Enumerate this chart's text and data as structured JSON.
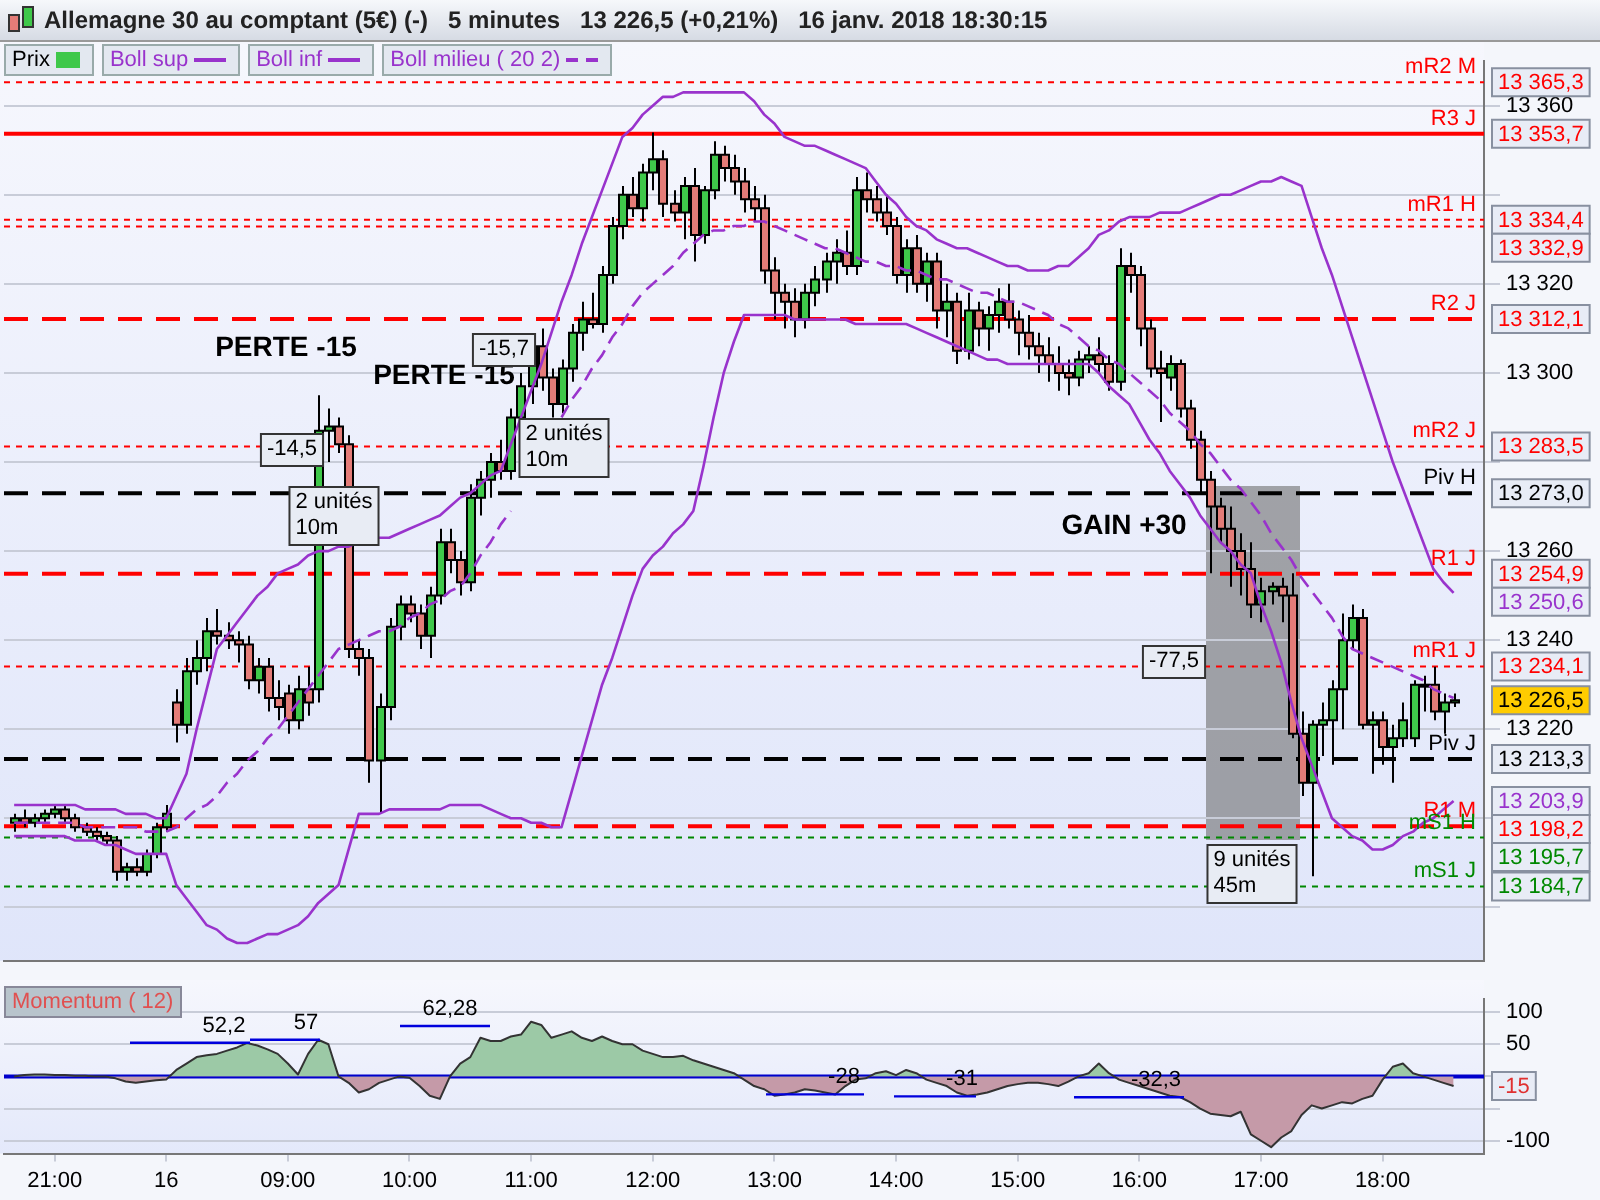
{
  "chart_data": [
    {
      "type": "candlestick",
      "title": "Allemagne 30 au comptant (5€) (-)   5 minutes   13 226,5 (+0,21%)   16 janv. 2018 18:30:15",
      "categories": [
        null,
        null,
        null,
        null,
        null,
        null,
        null,
        null,
        null,
        null,
        null,
        null,
        null,
        null,
        null,
        null,
        null,
        null,
        null,
        null,
        null,
        null,
        null,
        null,
        null,
        null,
        null,
        null,
        null,
        null,
        null,
        null,
        null,
        null,
        null,
        null,
        null,
        null,
        null,
        null,
        null,
        null,
        null,
        null,
        null,
        null,
        null,
        null,
        null,
        null,
        null,
        null,
        null,
        null,
        null,
        null,
        null,
        null,
        null,
        null,
        null,
        null,
        null,
        null,
        null,
        null,
        null,
        null,
        null,
        null,
        null,
        null,
        null,
        null,
        null,
        null,
        null,
        null,
        null,
        null,
        null,
        null,
        null,
        null,
        null,
        null,
        null,
        null,
        null,
        null,
        null,
        null,
        null,
        null,
        null,
        null,
        null,
        null,
        null,
        null,
        null,
        null,
        null,
        null,
        null,
        null,
        null,
        null,
        null,
        null,
        null,
        null,
        null,
        null,
        null,
        null,
        null,
        null,
        null,
        null,
        null,
        null,
        null,
        null,
        null,
        null,
        null,
        null,
        null,
        null,
        null,
        null,
        null,
        null,
        null,
        null,
        null,
        null,
        null,
        null,
        null,
        null,
        null
      ],
      "series": [
        {
          "name": "Prix",
          "type": "candlestick",
          "colors": [
            "#3fc84a",
            "#e47c78",
            "#3fc84a",
            "#3fc84a",
            "#3fc84a",
            "#e47c78",
            "#e47c78",
            "#e47c78",
            "#e47c78",
            "#e47c78",
            "#e47c78",
            "#3fc84a",
            "#e47c78",
            "#3fc84a",
            "#3fc84a",
            "#3fc84a",
            "#e47c78",
            "#3fc84a",
            "#3fc84a",
            "#3fc84a",
            "#e47c78",
            "#e47c78",
            "#e47c78",
            "#e47c78",
            "#3fc84a",
            "#e47c78",
            "#e47c78",
            "#e47c78",
            "#3fc84a",
            "#e47c78",
            "#3fc84a",
            "#3fc84a",
            "#e47c78",
            "#e47c78",
            "#e47c78",
            "#e47c78",
            "#3fc84a",
            "#3fc84a",
            "#3fc84a",
            "#e47c78",
            "#e47c78",
            "#3fc84a",
            "#3fc84a",
            "#e47c78",
            "#e47c78",
            "#3fc84a",
            "#3fc84a",
            "#3fc84a",
            "#e47c78",
            "#3fc84a",
            "#3fc84a",
            "#3fc84a",
            "#e47c78",
            "#e47c78",
            "#3fc84a",
            "#3fc84a",
            "#3fc84a",
            "#e47c78",
            "#3fc84a",
            "#3fc84a",
            "#3fc84a",
            "#e47c78",
            "#3fc84a",
            "#3fc84a",
            "#e47c78",
            "#e47c78",
            "#3fc84a",
            "#e47c78",
            "#3fc84a",
            "#3fc84a",
            "#e47c78",
            "#e47c78",
            "#e47c78",
            "#e47c78",
            "#e47c78",
            "#e47c78",
            "#e47c78",
            "#e47c78",
            "#3fc84a",
            "#3fc84a",
            "#3fc84a",
            "#3fc84a",
            "#e47c78",
            "#3fc84a",
            "#e47c78",
            "#e47c78",
            "#e47c78",
            "#e47c78",
            "#3fc84a",
            "#e47c78",
            "#3fc84a",
            "#e47c78",
            "#3fc84a",
            "#e47c78",
            "#3fc84a",
            "#e47c78",
            "#3fc84a",
            "#3fc84a",
            "#e47c78",
            "#e47c78",
            "#e47c78",
            "#e47c78",
            "#e47c78",
            "#e47c78",
            "#e47c78",
            "#3fc84a",
            "#3fc84a",
            "#e47c78",
            "#e47c78",
            "#3fc84a",
            "#e47c78",
            "#e47c78",
            "#e47c78",
            "#e47c78",
            "#3fc84a",
            "#e47c78",
            "#e47c78",
            "#e47c78",
            "#e47c78",
            "#e47c78",
            "#e47c78",
            "#e47c78",
            "#e47c78",
            "#3fc84a",
            "#3fc84a",
            "#e47c78",
            "#e47c78",
            "#e47c78",
            "#3fc84a",
            "#3fc84a",
            "#3fc84a",
            "#3fc84a",
            "#3fc84a",
            "#e47c78",
            "#3fc84a",
            "#e47c78",
            "#3fc84a",
            "#3fc84a",
            "#3fc84a",
            "#3fc84a",
            "#e47c78",
            "#3fc84a",
            "#3fc84a"
          ],
          "ohlc": [
            [
              13199,
              13201,
              13197,
              13200
            ],
            [
              13200,
              13202,
              13198,
              13199
            ],
            [
              13199,
              13201,
              13198,
              13200
            ],
            [
              13200,
              13202,
              13199,
              13201
            ],
            [
              13201,
              13203,
              13200,
              13202
            ],
            [
              13202,
              13203,
              13199,
              13200
            ],
            [
              13200,
              13201,
              13197,
              13198
            ],
            [
              13198,
              13199,
              13196,
              13197
            ],
            [
              13197,
              13198,
              13195,
              13196
            ],
            [
              13196,
              13197,
              13194,
              13195
            ],
            [
              13195,
              13196,
              13186,
              13188
            ],
            [
              13188,
              13190,
              13186,
              13189
            ],
            [
              13189,
              13191,
              13187,
              13188
            ],
            [
              13188,
              13193,
              13187,
              13192
            ],
            [
              13192,
              13199,
              13191,
              13198
            ],
            [
              13198,
              13203,
              13197,
              13201
            ],
            [
              13226,
              13229,
              13217,
              13221
            ],
            [
              13221,
              13236,
              13219,
              13233
            ],
            [
              13233,
              13240,
              13230,
              13236
            ],
            [
              13236,
              13245,
              13233,
              13242
            ],
            [
              13242,
              13247,
              13239,
              13241
            ],
            [
              13241,
              13244,
              13238,
              13240
            ],
            [
              13240,
              13242,
              13235,
              13239
            ],
            [
              13239,
              13241,
              13229,
              13231
            ],
            [
              13231,
              13236,
              13228,
              13234
            ],
            [
              13234,
              13236,
              13224,
              13227
            ],
            [
              13227,
              13231,
              13222,
              13225
            ],
            [
              13228,
              13230,
              13219,
              13222
            ],
            [
              13222,
              13232,
              13220,
              13229
            ],
            [
              13229,
              13234,
              13223,
              13226
            ],
            [
              13229,
              13295,
              13226,
              13287
            ],
            [
              13287,
              13292,
              13280,
              13288
            ],
            [
              13288,
              13290,
              13282,
              13284
            ],
            [
              13284,
              13286,
              13236,
              13238
            ],
            [
              13238,
              13240,
              13232,
              13236
            ],
            [
              13236,
              13238,
              13208,
              13213
            ],
            [
              13213,
              13228,
              13201,
              13225
            ],
            [
              13225,
              13245,
              13222,
              13243
            ],
            [
              13243,
              13250,
              13240,
              13248
            ],
            [
              13248,
              13250,
              13244,
              13246
            ],
            [
              13246,
              13248,
              13238,
              13241
            ],
            [
              13241,
              13252,
              13236,
              13250
            ],
            [
              13250,
              13265,
              13248,
              13262
            ],
            [
              13262,
              13265,
              13255,
              13258
            ],
            [
              13258,
              13260,
              13250,
              13253
            ],
            [
              13253,
              13275,
              13251,
              13272
            ],
            [
              13272,
              13278,
              13268,
              13276
            ],
            [
              13276,
              13282,
              13272,
              13280
            ],
            [
              13280,
              13285,
              13276,
              13278
            ],
            [
              13278,
              13292,
              13276,
              13290
            ],
            [
              13290,
              13300,
              13285,
              13297
            ],
            [
              13297,
              13308,
              13293,
              13306
            ],
            [
              13306,
              13310,
              13296,
              13299
            ],
            [
              13299,
              13301,
              13290,
              13293
            ],
            [
              13293,
              13303,
              13291,
              13301
            ],
            [
              13301,
              13311,
              13298,
              13309
            ],
            [
              13309,
              13316,
              13305,
              13312
            ],
            [
              13312,
              13318,
              13310,
              13311
            ],
            [
              13311,
              13324,
              13309,
              13322
            ],
            [
              13322,
              13335,
              13320,
              13333
            ],
            [
              13333,
              13342,
              13330,
              13340
            ],
            [
              13340,
              13344,
              13335,
              13337
            ],
            [
              13337,
              13347,
              13334,
              13345
            ],
            [
              13345,
              13354,
              13341,
              13348
            ],
            [
              13348,
              13350,
              13335,
              13338
            ],
            [
              13338,
              13341,
              13334,
              13336
            ],
            [
              13336,
              13344,
              13330,
              13342
            ],
            [
              13342,
              13346,
              13325,
              13331
            ],
            [
              13331,
              13342,
              13329,
              13341
            ],
            [
              13341,
              13352,
              13339,
              13349
            ],
            [
              13349,
              13351,
              13343,
              13346
            ],
            [
              13346,
              13349,
              13340,
              13343
            ],
            [
              13343,
              13346,
              13336,
              13339
            ],
            [
              13339,
              13342,
              13334,
              13337
            ],
            [
              13337,
              13340,
              13320,
              13323
            ],
            [
              13323,
              13326,
              13312,
              13318
            ],
            [
              13318,
              13320,
              13310,
              13316
            ],
            [
              13316,
              13319,
              13308,
              13312
            ],
            [
              13312,
              13320,
              13310,
              13318
            ],
            [
              13318,
              13324,
              13315,
              13321
            ],
            [
              13321,
              13327,
              13318,
              13325
            ],
            [
              13325,
              13330,
              13320,
              13327
            ],
            [
              13327,
              13332,
              13322,
              13324
            ],
            [
              13324,
              13344,
              13322,
              13341
            ],
            [
              13341,
              13345,
              13336,
              13339
            ],
            [
              13339,
              13342,
              13334,
              13336
            ],
            [
              13336,
              13340,
              13331,
              13333
            ],
            [
              13333,
              13335,
              13320,
              13322
            ],
            [
              13322,
              13330,
              13318,
              13328
            ],
            [
              13328,
              13331,
              13318,
              13320
            ],
            [
              13320,
              13327,
              13316,
              13325
            ],
            [
              13325,
              13327,
              13310,
              13314
            ],
            [
              13314,
              13320,
              13308,
              13316
            ],
            [
              13316,
              13318,
              13302,
              13305
            ],
            [
              13305,
              13318,
              13303,
              13314
            ],
            [
              13314,
              13316,
              13306,
              13310
            ],
            [
              13310,
              13315,
              13305,
              13313
            ],
            [
              13313,
              13319,
              13309,
              13316
            ],
            [
              13316,
              13320,
              13310,
              13312
            ],
            [
              13312,
              13314,
              13304,
              13309
            ],
            [
              13309,
              13313,
              13303,
              13306
            ],
            [
              13306,
              13309,
              13300,
              13304
            ],
            [
              13304,
              13308,
              13298,
              13302
            ],
            [
              13302,
              13306,
              13296,
              13300
            ],
            [
              13300,
              13303,
              13295,
              13299
            ],
            [
              13299,
              13305,
              13297,
              13303
            ],
            [
              13303,
              13306,
              13300,
              13304
            ],
            [
              13304,
              13308,
              13300,
              13302
            ],
            [
              13302,
              13304,
              13296,
              13298
            ],
            [
              13298,
              13328,
              13296,
              13324
            ],
            [
              13324,
              13327,
              13318,
              13322
            ],
            [
              13322,
              13324,
              13306,
              13310
            ],
            [
              13310,
              13312,
              13299,
              13301
            ],
            [
              13301,
              13305,
              13289,
              13300
            ],
            [
              13299,
              13304,
              13296,
              13302
            ],
            [
              13302,
              13303,
              13290,
              13292
            ],
            [
              13292,
              13294,
              13283,
              13285
            ],
            [
              13285,
              13287,
              13273,
              13276
            ],
            [
              13276,
              13278,
              13255,
              13270
            ],
            [
              13270,
              13272,
              13262,
              13265
            ],
            [
              13265,
              13270,
              13252,
              13260
            ],
            [
              13260,
              13264,
              13250,
              13256
            ],
            [
              13256,
              13262,
              13245,
              13248
            ],
            [
              13248,
              13254,
              13244,
              13251
            ],
            [
              13251,
              13253,
              13248,
              13252
            ],
            [
              13252,
              13254,
              13244,
              13250
            ],
            [
              13250,
              13255,
              13218,
              13219
            ],
            [
              13219,
              13224,
              13205,
              13208
            ],
            [
              13208,
              13222,
              13187,
              13221
            ],
            [
              13221,
              13226,
              13214,
              13222
            ],
            [
              13222,
              13231,
              13212,
              13229
            ],
            [
              13229,
              13246,
              13220,
              13240
            ],
            [
              13240,
              13248,
              13238,
              13245
            ],
            [
              13245,
              13247,
              13220,
              13221
            ],
            [
              13221,
              13224,
              13210,
              13222
            ],
            [
              13222,
              13224,
              13212,
              13216
            ],
            [
              13216,
              13221,
              13208,
              13218
            ],
            [
              13218,
              13226,
              13216,
              13222
            ],
            [
              13218,
              13231,
              13216,
              13230
            ],
            [
              13230,
              13232,
              13224,
              13230
            ],
            [
              13230,
              13234,
              13222,
              13224
            ],
            [
              13224,
              13228,
              13219,
              13226
            ],
            [
              13226,
              13228,
              13225,
              13226.5
            ]
          ]
        },
        {
          "name": "Boll sup",
          "type": "line",
          "color": "#9933cc",
          "values": [
            13203,
            13203,
            13203,
            13203,
            13203,
            13203,
            13203,
            13202,
            13202,
            13202,
            13202,
            13201,
            13201,
            13201,
            13200,
            13200,
            13205,
            13210,
            13220,
            13229,
            13238,
            13241,
            13244,
            13247,
            13250,
            13252,
            13255,
            13256,
            13257,
            13259,
            13260,
            13260,
            13261,
            13261,
            13262,
            null,
            13263,
            13263,
            13264,
            13265,
            13266,
            13267,
            13268,
            13270,
            13272,
            13273,
            13275,
            13277,
            13278,
            13284,
            13290,
            13296,
            13302,
            13309,
            13316,
            13322,
            13329,
            13335,
            13341,
            13347,
            13353,
            13355,
            13358,
            13360,
            13362,
            13362,
            13363,
            13363,
            13363,
            13363,
            13363,
            13363,
            13363,
            13361,
            13358,
            13356,
            13353,
            13352,
            13351,
            13351,
            13350,
            13349,
            13348,
            13347,
            13346,
            13343,
            13340,
            13338,
            13335,
            13333,
            13332,
            13330,
            13329,
            13328,
            13328,
            13327,
            13326,
            13325,
            13324,
            13324,
            13323,
            13323,
            13323,
            13324,
            13324,
            13326,
            13328,
            13331,
            13332,
            13334,
            13335,
            13335,
            13335,
            13336,
            13336,
            13336,
            13337,
            13338,
            13339,
            13340,
            13340,
            13341,
            13342,
            13343,
            13343,
            13344,
            13343,
            13342,
            13335,
            13328,
            13322,
            13315,
            13308,
            13301,
            13294,
            13287,
            13280,
            13274,
            13268,
            13262,
            13256,
            13253,
            13250.6
          ]
        },
        {
          "name": "Boll inf",
          "type": "line",
          "color": "#9933cc",
          "values": [
            13196,
            13196,
            13196,
            13196,
            13196,
            13196,
            13195,
            13195,
            13195,
            13194,
            13194,
            13193,
            13192,
            13192,
            13192,
            13192,
            13185,
            13182,
            13179,
            13176,
            13175,
            13173,
            13172,
            13172,
            13173,
            13174,
            13174,
            13175,
            13176,
            13178,
            13181,
            13183,
            13185,
            13193,
            13201,
            13201,
            13201,
            13202,
            13202,
            13202,
            13202,
            13202,
            13202,
            13203,
            13203,
            13203,
            13203,
            13202,
            13201,
            13200,
            13200,
            13199,
            13199,
            13198,
            13198,
            13206,
            13214,
            13222,
            13230,
            13236,
            13243,
            13250,
            13256,
            13259,
            13261,
            13264,
            13266,
            13269,
            13279,
            13290,
            13300,
            13307,
            13313,
            13313,
            13313,
            13313,
            13313,
            13312,
            13312,
            13312,
            13312,
            13312,
            13312,
            13311,
            13311,
            13311,
            13311,
            13311,
            13311,
            13310,
            13309,
            13308,
            13307,
            13306,
            13305,
            13304,
            13303,
            13303,
            13302,
            13302,
            13302,
            13302,
            13302,
            13302,
            13302,
            13302,
            13302,
            13300,
            13297,
            13295,
            13293,
            13289,
            13285,
            13282,
            13278,
            13275,
            13272,
            13268,
            13265,
            13262,
            13260,
            13257,
            13255,
            13248,
            13242,
            13235,
            13226,
            13218,
            13212,
            13206,
            13200,
            13198,
            13196,
            13195,
            13193,
            13193,
            13194,
            13196,
            13197,
            13199,
            13200,
            13202,
            13203.9
          ]
        },
        {
          "name": "Boll milieu ( 20 2)",
          "type": "line",
          "line_style": "dashed",
          "color": "#9933cc",
          "values": [
            13199,
            13199,
            13199,
            13199,
            13199,
            13199,
            13199,
            13198,
            13198,
            13198,
            13198,
            13198,
            13198,
            13197,
            13197,
            13197,
            13198,
            13200,
            13202,
            13203,
            13205,
            13208,
            13210,
            13213,
            13215,
            13218,
            13220,
            13223,
            13226,
            13229,
            13232,
            13235,
            13238,
            13239,
            13240,
            13241,
            13242,
            13242,
            13243,
            13245,
            13246,
            13248,
            13249,
            13251,
            13252,
            13255,
            13259,
            13262,
            13266,
            13269,
            null,
            null,
            null,
            null,
            13290,
            13294,
            13297,
            13301,
            13304,
            13308,
            13311,
            13315,
            13318,
            13320,
            13322,
            13324,
            13327,
            13329,
            13331,
            13332,
            13332,
            13333,
            13333,
            13334,
            13334,
            13333,
            13332,
            13331,
            13330,
            13329,
            13328,
            13328,
            13327,
            13326,
            13325,
            13325,
            13324,
            13324,
            13323,
            13323,
            13322,
            13321,
            13321,
            13320,
            13319,
            13318,
            13318,
            13317,
            13316,
            13316,
            13315,
            13314,
            13313,
            13311,
            13310,
            13308,
            13306,
            13305,
            13303,
            13302,
            13300,
            13298,
            13296,
            13294,
            13291,
            13289,
            13287,
            13284,
            13282,
            13279,
            13276,
            13274,
            13271,
            13268,
            13264,
            13261,
            13258,
            13254,
            13251,
            13248,
            13245,
            13241,
            13238,
            13237,
            13236,
            13235,
            13234,
            13233,
            13232,
            13231,
            13229,
            13228,
            13227
          ]
        }
      ],
      "ylim": [
        13168,
        13370
      ],
      "yticks": [
        {
          "value": 13180,
          "label": null
        },
        {
          "value": 13200,
          "label": null
        },
        {
          "value": 13220,
          "label": "13 220"
        },
        {
          "value": 13240,
          "label": "13 240"
        },
        {
          "value": 13260,
          "label": "13 260"
        },
        {
          "value": 13280,
          "label": null
        },
        {
          "value": 13300,
          "label": "13 300"
        },
        {
          "value": 13320,
          "label": "13 320"
        },
        {
          "value": 13340,
          "label": null
        },
        {
          "value": 13360,
          "label": "13 360"
        }
      ],
      "ref_lines": [
        {
          "axis": "y",
          "value": 13365.3,
          "label": "mR2 M",
          "color": "#ff0000",
          "line_style": "dotted"
        },
        {
          "axis": "y",
          "value": 13353.7,
          "label": "R3 J",
          "color": "#ff0000",
          "line_style": "solid"
        },
        {
          "axis": "y",
          "value": 13334.4,
          "label": "mR1 H",
          "color": "#ff0000",
          "line_style": "dotted"
        },
        {
          "axis": "y",
          "value": 13332.9,
          "color": "#ff0000",
          "line_style": "dotted"
        },
        {
          "axis": "y",
          "value": 13312.1,
          "label": "R2 J",
          "color": "#ff0000",
          "line_style": "dashed"
        },
        {
          "axis": "y",
          "value": 13283.5,
          "label": "mR2 J",
          "color": "#ff0000",
          "line_style": "dotted"
        },
        {
          "axis": "y",
          "value": 13273.0,
          "label": "Piv H",
          "color": "#000000",
          "line_style": "dashed"
        },
        {
          "axis": "y",
          "value": 13254.9,
          "label": "R1 J",
          "color": "#ff0000",
          "line_style": "dashed"
        },
        {
          "axis": "y",
          "value": 13234.1,
          "label": "mR1 J",
          "color": "#ff0000",
          "line_style": "dotted"
        },
        {
          "axis": "y",
          "value": 13213.3,
          "label": "Piv J",
          "color": "#000000",
          "line_style": "dashed"
        },
        {
          "axis": "y",
          "value": 13198.2,
          "label": "R1 M",
          "color": "#ff0000",
          "line_style": "dashed"
        },
        {
          "axis": "y",
          "value": 13195.7,
          "label": "mS1 H",
          "color": "#008800",
          "line_style": "dotted"
        },
        {
          "axis": "y",
          "value": 13184.7,
          "label": "mS1 J",
          "color": "#008800",
          "line_style": "dotted"
        }
      ],
      "annotations": [
        "PERTE -15",
        "PERTE -15",
        "GAIN +30",
        "-14,5",
        "-15,7",
        "-77,5",
        "2 unités\n10m",
        "2 unités\n10m",
        "9 unités\n45m",
        "13 365,3",
        "13 353,7",
        "13 334,4",
        "13 332,9",
        "13 312,1",
        "13 283,5",
        "13 273,0",
        "13 254,9",
        "13 250,6",
        "13 234,1",
        "13 226,5",
        "13 213,3",
        "13 203,9",
        "13 198,2",
        "13 195,7",
        "13 184,7"
      ],
      "grid": "y",
      "legend": "top left",
      "tick_labels": "y"
    },
    {
      "type": "area",
      "title": "Momentum ( 12)",
      "categories": [
        null,
        null,
        null,
        null,
        "21:00",
        null,
        null,
        null,
        null,
        null,
        null,
        null,
        null,
        null,
        null,
        "16",
        null,
        null,
        null,
        null,
        null,
        null,
        null,
        null,
        null,
        null,
        null,
        "09:00",
        null,
        null,
        null,
        null,
        null,
        null,
        null,
        null,
        null,
        null,
        null,
        "10:00",
        null,
        null,
        null,
        null,
        null,
        null,
        null,
        null,
        null,
        null,
        null,
        "11:00",
        null,
        null,
        null,
        null,
        null,
        null,
        null,
        null,
        null,
        null,
        null,
        "12:00",
        null,
        null,
        null,
        null,
        null,
        null,
        null,
        null,
        null,
        null,
        null,
        "13:00",
        null,
        null,
        null,
        null,
        null,
        null,
        null,
        null,
        null,
        null,
        null,
        "14:00",
        null,
        null,
        null,
        null,
        null,
        null,
        null,
        null,
        null,
        null,
        null,
        "15:00",
        null,
        null,
        null,
        null,
        null,
        null,
        null,
        null,
        null,
        null,
        null,
        "16:00",
        null,
        null,
        null,
        null,
        null,
        null,
        null,
        null,
        null,
        null,
        null,
        "17:00",
        null,
        null,
        null,
        null,
        null,
        null,
        null,
        null,
        null,
        null,
        null,
        "18:00",
        null,
        null,
        null,
        null,
        null,
        null,
        null
      ],
      "series": [
        {
          "color": "#9cc9a6",
          "values": [
            0,
            2,
            3,
            3,
            2,
            2,
            1,
            1,
            0,
            0,
            -3,
            -8,
            -10,
            -8,
            -6,
            -5,
            10,
            20,
            30,
            33,
            35,
            40,
            45,
            52,
            48,
            42,
            35,
            20,
            3,
            35,
            57,
            50,
            0,
            -10,
            -25,
            -20,
            -10,
            -5,
            0,
            -2,
            -15,
            -30,
            -35,
            0,
            20,
            30,
            60,
            55,
            55,
            62,
            65,
            85,
            80,
            60,
            65,
            70,
            60,
            55,
            62,
            55,
            50,
            50,
            40,
            35,
            30,
            30,
            32,
            25,
            20,
            15,
            10,
            5,
            -5,
            -15,
            -20,
            -30,
            -28,
            -25,
            -20,
            -22,
            -25,
            -28,
            -15,
            -5,
            -3,
            5,
            8,
            2,
            10,
            5,
            -5,
            -10,
            -15,
            -25,
            -30,
            -28,
            -25,
            -20,
            -15,
            -12,
            -10,
            -10,
            -12,
            -15,
            -8,
            0,
            5,
            20,
            5,
            -5,
            -10,
            -15,
            -20,
            -25,
            -30,
            -32,
            -40,
            -50,
            -58,
            -60,
            -62,
            -55,
            -90,
            -100,
            -110,
            -95,
            -85,
            -60,
            -45,
            -50,
            -45,
            -40,
            -42,
            -35,
            -30,
            -5,
            15,
            20,
            5,
            0,
            -5,
            -10,
            -15
          ]
        }
      ],
      "ylim": [
        -120,
        120
      ],
      "yticks": [
        {
          "value": -100,
          "label": "-100"
        },
        {
          "value": -50,
          "label": null
        },
        {
          "value": 0,
          "label": null
        },
        {
          "value": 50,
          "label": "50"
        },
        {
          "value": 100,
          "label": "100"
        }
      ],
      "ref_lines": [
        {
          "axis": "y",
          "value": 0,
          "color": "#0000cc",
          "line_style": "solid"
        }
      ],
      "annotations": [
        {
          "text": "52,2",
          "y": 52.2
        },
        {
          "text": "57",
          "y": 57
        },
        "62,28",
        {
          "text": "-28",
          "y": -28
        },
        {
          "text": "-31",
          "y": -31
        },
        {
          "text": "-32,3",
          "y": -32.3
        },
        "-15"
      ],
      "grid": "y"
    }
  ]
}
